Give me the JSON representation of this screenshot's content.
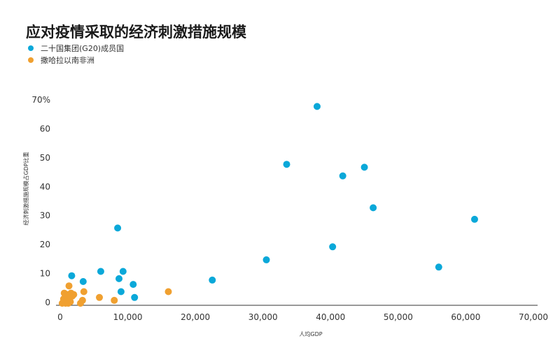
{
  "chart_data": {
    "type": "scatter",
    "title": "应对疫情采取的经济刺激措施规模",
    "xlabel": "人均GDP",
    "ylabel": "经济刺激措施规模占GDP比重",
    "xlim": [
      0,
      70000
    ],
    "ylim": [
      0,
      70
    ],
    "x_ticks": [
      "0",
      "10,000",
      "20,000",
      "30,000",
      "40,000",
      "50,000",
      "60,000",
      "70,000"
    ],
    "y_ticks": [
      "0",
      "10",
      "20",
      "30",
      "40",
      "50",
      "60",
      "70%"
    ],
    "legend_position": "top-left",
    "series": [
      {
        "name": "二十国集团(G20)成员国",
        "color": "#0aa8d9",
        "points": [
          {
            "x": 1700,
            "y": 9
          },
          {
            "x": 3400,
            "y": 7
          },
          {
            "x": 6000,
            "y": 10.5
          },
          {
            "x": 8500,
            "y": 25.5
          },
          {
            "x": 8700,
            "y": 8
          },
          {
            "x": 9300,
            "y": 10.5
          },
          {
            "x": 9000,
            "y": 3.5
          },
          {
            "x": 10800,
            "y": 6
          },
          {
            "x": 11000,
            "y": 1.5
          },
          {
            "x": 22500,
            "y": 7.5
          },
          {
            "x": 30500,
            "y": 14.5
          },
          {
            "x": 33500,
            "y": 47.5
          },
          {
            "x": 38000,
            "y": 67.5
          },
          {
            "x": 40300,
            "y": 19
          },
          {
            "x": 41800,
            "y": 43.5
          },
          {
            "x": 45000,
            "y": 46.5
          },
          {
            "x": 46300,
            "y": 32.5
          },
          {
            "x": 56000,
            "y": 12
          },
          {
            "x": 61300,
            "y": 28.5
          }
        ]
      },
      {
        "name": "撒哈拉以南非洲",
        "color": "#f0a030",
        "points": [
          {
            "x": 300,
            "y": -0.5
          },
          {
            "x": 500,
            "y": 1
          },
          {
            "x": 600,
            "y": 3
          },
          {
            "x": 700,
            "y": 0
          },
          {
            "x": 800,
            "y": -0.5
          },
          {
            "x": 900,
            "y": 1.5
          },
          {
            "x": 1000,
            "y": 2.5
          },
          {
            "x": 1100,
            "y": 0.5
          },
          {
            "x": 1200,
            "y": -0.5
          },
          {
            "x": 1300,
            "y": 5.5
          },
          {
            "x": 1400,
            "y": 2
          },
          {
            "x": 1500,
            "y": 0
          },
          {
            "x": 1600,
            "y": 3
          },
          {
            "x": 1800,
            "y": 2
          },
          {
            "x": 2000,
            "y": 2.5
          },
          {
            "x": 3000,
            "y": -0.5
          },
          {
            "x": 3300,
            "y": 0.5
          },
          {
            "x": 3500,
            "y": 3.5
          },
          {
            "x": 5800,
            "y": 1.5
          },
          {
            "x": 8000,
            "y": 0.5
          },
          {
            "x": 16000,
            "y": 3.5
          }
        ]
      }
    ]
  }
}
